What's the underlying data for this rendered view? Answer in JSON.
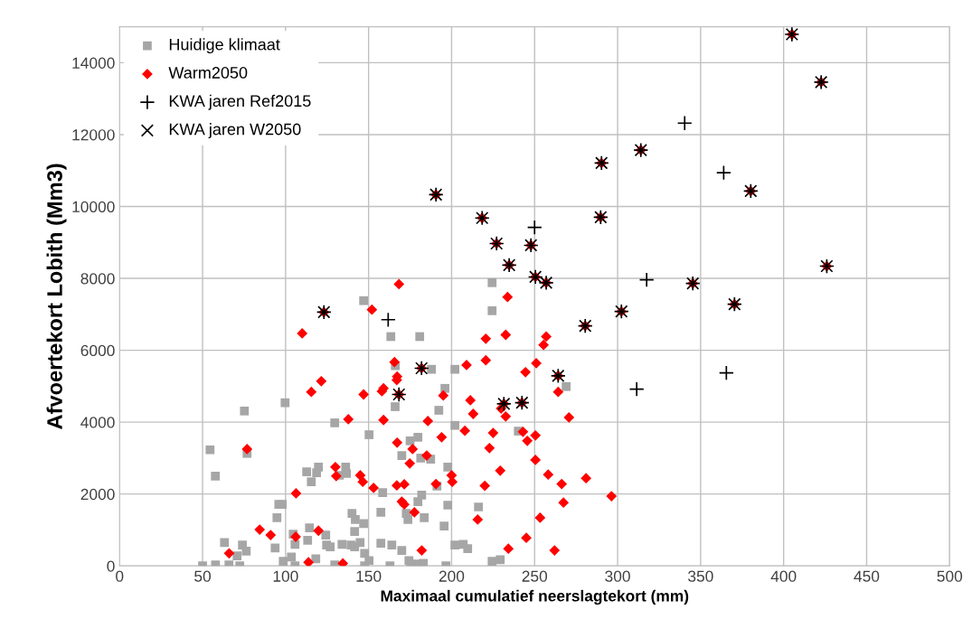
{
  "chart_data": {
    "type": "scatter",
    "xlabel": "Maximaal cumulatief neerslagtekort (mm)",
    "ylabel": "Afvoertekort Lobith (Mm3)",
    "xlim": [
      0,
      500
    ],
    "xticks": [
      0,
      50,
      100,
      150,
      200,
      250,
      300,
      350,
      400,
      450,
      500
    ],
    "ylim": [
      0,
      15000
    ],
    "yticks": [
      0,
      2000,
      4000,
      6000,
      8000,
      10000,
      12000,
      14000
    ],
    "grid": true,
    "legend": "top left",
    "series": [
      {
        "name": "Huidige klimaat",
        "color": "#a6a6a6",
        "marker": "square",
        "x": [
          75.2,
          54.5,
          76.8,
          57.7,
          63.2,
          74,
          76.3,
          70.8,
          50,
          57.8,
          65.9,
          72.4,
          94.8,
          93.7,
          95.9,
          99.7,
          166,
          129.6,
          150.3,
          175,
          179.7,
          170,
          181.4,
          112.7,
          119.8,
          118.7,
          115.5,
          136.2,
          136.7,
          132.4,
          158.5,
          98,
          157.4,
          140,
          142,
          147,
          141.6,
          114.4,
          124.2,
          104.6,
          113.3,
          105.7,
          124.7,
          126.9,
          134,
          139.4,
          144.9,
          141.6,
          147.6,
          150.3,
          98.6,
          103.5,
          105.7,
          118.2,
          129.6,
          147.6,
          157.4,
          164,
          170,
          174.3,
          175.4,
          179.7,
          183,
          162.9,
          172.7,
          173.7,
          183.5,
          182,
          179.7,
          187.4,
          224.4,
          224.4,
          202,
          196,
          192.3,
          202,
          240.2,
          269,
          197.7,
          191.2,
          197.7,
          216.2,
          195.5,
          202,
          207,
          209.7,
          224.4,
          229.3,
          196.6,
          147,
          163.4,
          180.8,
          166.1,
          187.9
        ],
        "values": [
          4310,
          3230,
          3130,
          2500,
          650,
          580,
          410,
          280,
          0,
          30,
          30,
          0,
          1340,
          500,
          1710,
          4540,
          4430,
          3980,
          3650,
          3480,
          3580,
          3070,
          3000,
          2620,
          2750,
          2590,
          2340,
          2750,
          2570,
          2520,
          2040,
          1710,
          1490,
          1460,
          1290,
          1180,
          960,
          1060,
          860,
          880,
          710,
          600,
          580,
          530,
          600,
          580,
          650,
          530,
          350,
          150,
          130,
          250,
          0,
          200,
          30,
          0,
          630,
          580,
          430,
          150,
          50,
          50,
          70,
          0,
          1460,
          1290,
          1340,
          1970,
          1790,
          2970,
          7880,
          7100,
          5470,
          4940,
          4330,
          3910,
          3750,
          4990,
          2750,
          2220,
          1690,
          1640,
          1110,
          580,
          600,
          480,
          130,
          170,
          0,
          7380,
          6380,
          6380,
          5570,
          5470
        ]
      },
      {
        "name": "Warm2050",
        "color": "#ff0000",
        "marker": "diamond",
        "x": [
          66,
          84.4,
          91,
          76.8,
          121.5,
          115.5,
          147,
          158,
          159,
          167,
          137.8,
          159,
          185.7,
          167.2,
          176.5,
          174.8,
          185,
          130,
          130.5,
          145,
          146.5,
          153,
          167,
          171.5,
          106.3,
          170,
          171.5,
          177.6,
          182,
          119.8,
          106.1,
          113.8,
          134.5,
          233.7,
          220.6,
          232.6,
          257,
          255.4,
          209,
          220.6,
          251,
          244.5,
          264.2,
          195,
          211.3,
          213,
          232.6,
          270.7,
          229.8,
          208,
          194,
          225,
          243,
          245.6,
          250.5,
          222.8,
          250.5,
          229.3,
          200,
          200.4,
          190.6,
          220,
          258.2,
          266.3,
          281,
          296.3,
          267.4,
          215.7,
          253.3,
          245,
          234.2,
          262,
          168.3,
          152,
          110,
          165.6,
          167.2,
          405,
          422.6,
          314,
          290.3,
          190.6,
          380.2,
          289.8,
          426,
          345.3,
          370.4,
          302.3,
          280.5,
          218.4,
          227.1,
          247.8,
          234.7,
          250.5,
          257,
          181.9,
          264.2,
          123.1,
          168.3,
          231.5,
          242.4
        ],
        "values": [
          350,
          1010,
          860,
          3250,
          5140,
          4840,
          4770,
          4860,
          4940,
          5170,
          4080,
          4060,
          4030,
          3430,
          3250,
          2850,
          3070,
          2750,
          2500,
          2520,
          2340,
          2170,
          2240,
          2270,
          2020,
          1790,
          1710,
          1490,
          430,
          980,
          810,
          100,
          70,
          7480,
          6320,
          6430,
          6380,
          6150,
          5590,
          5720,
          5640,
          5390,
          4840,
          4740,
          4610,
          4230,
          4160,
          4130,
          4380,
          3760,
          3580,
          3700,
          3730,
          3480,
          3630,
          3280,
          2950,
          2650,
          2520,
          2340,
          2280,
          2230,
          2540,
          2280,
          2440,
          1940,
          1760,
          1290,
          1340,
          780,
          480,
          430,
          7840,
          7130,
          6470,
          5670,
          5270,
          14790,
          13460,
          11570,
          11210,
          10330,
          10430,
          9700,
          8340,
          7860,
          7280,
          7080,
          6680,
          9680,
          8970,
          8920,
          8370,
          8040,
          7880,
          5500,
          5290,
          7060,
          4770,
          4510,
          4540
        ]
      },
      {
        "name": "KWA jaren Ref2015",
        "color": "#000000",
        "marker": "plus",
        "x": [
          405,
          422.6,
          314,
          290.3,
          190.6,
          380.2,
          289.8,
          426,
          345.3,
          370.4,
          302.3,
          280.5,
          218.4,
          227.1,
          247.8,
          234.7,
          250.5,
          257,
          181.9,
          264.2,
          123.1,
          168.3,
          231.5,
          242.4,
          340.4,
          363.9,
          317.5,
          365.5,
          311.5,
          250,
          161.8
        ],
        "values": [
          14790,
          13460,
          11570,
          11210,
          10330,
          10430,
          9700,
          8340,
          7860,
          7280,
          7080,
          6680,
          9680,
          8970,
          8920,
          8370,
          8040,
          7880,
          5500,
          5290,
          7060,
          4770,
          4510,
          4540,
          12320,
          10940,
          7960,
          5370,
          4920,
          9420,
          6850
        ]
      },
      {
        "name": "KWA jaren W2050",
        "color": "#000000",
        "marker": "cross",
        "x": [
          405,
          422.6,
          314,
          290.3,
          190.6,
          380.2,
          289.8,
          426,
          345.3,
          370.4,
          302.3,
          280.5,
          218.4,
          227.1,
          247.8,
          234.7,
          250.5,
          257,
          181.9,
          264.2,
          123.1,
          168.3,
          231.5,
          242.4
        ],
        "values": [
          14790,
          13460,
          11570,
          11210,
          10330,
          10430,
          9700,
          8340,
          7860,
          7280,
          7080,
          6680,
          9680,
          8970,
          8920,
          8370,
          8040,
          7880,
          5500,
          5290,
          7060,
          4770,
          4510,
          4540
        ]
      }
    ]
  }
}
